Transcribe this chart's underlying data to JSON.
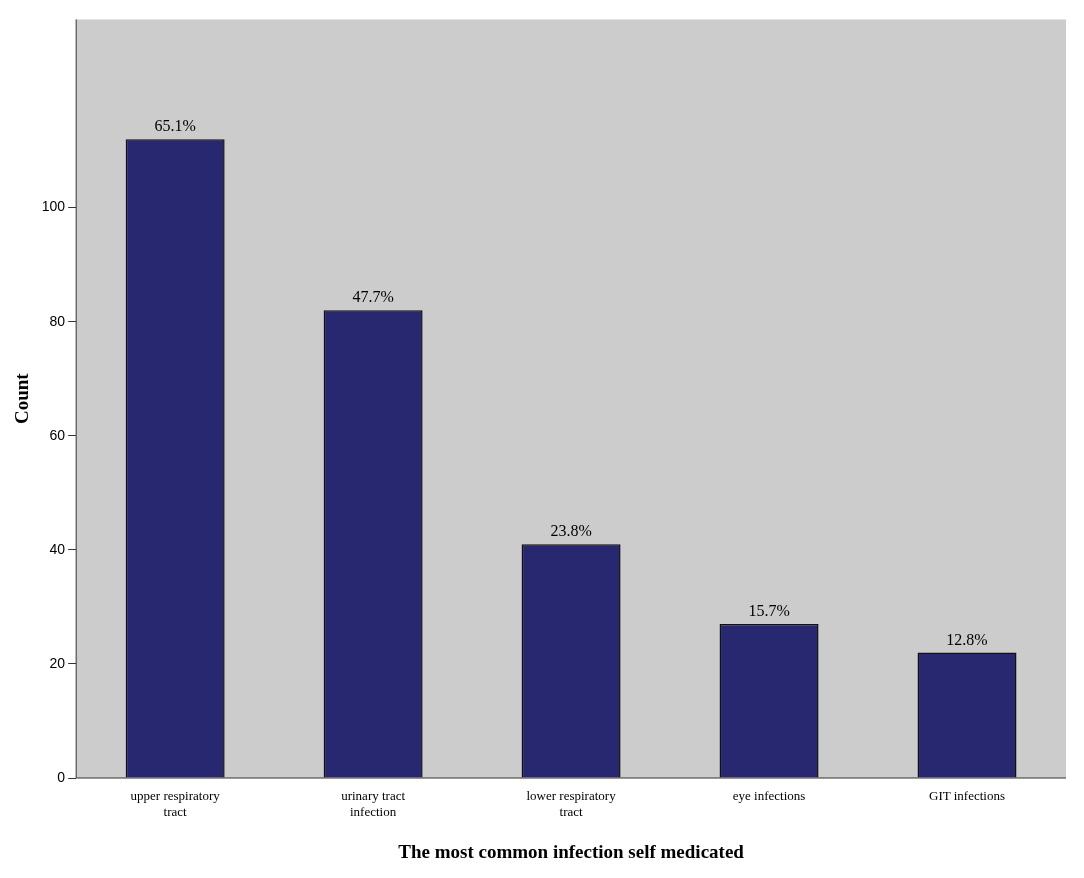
{
  "chart_data": {
    "type": "bar",
    "xlabel": "The most common infection self medicated",
    "ylabel": "Count",
    "categories": [
      "upper respiratory tract",
      "urinary tract infection",
      "lower respiratory tract",
      "eye infections",
      "GIT infections"
    ],
    "values": [
      112,
      82,
      41,
      27,
      22
    ],
    "annotations": [
      {
        "text": "65.1%",
        "x": "upper respiratory tract",
        "y": 112
      },
      {
        "text": "47.7%",
        "x": "urinary tract infection",
        "y": 82
      },
      {
        "text": "23.8%",
        "x": "lower respiratory tract",
        "y": 41
      },
      {
        "text": "15.7%",
        "x": "eye infections",
        "y": 27
      },
      {
        "text": "12.8%",
        "x": "GIT infections",
        "y": 22
      }
    ],
    "color": "#282870",
    "ylim": [
      0,
      133
    ],
    "yticks": [
      0,
      20,
      40,
      60,
      80,
      100
    ],
    "grid": false,
    "legend": false
  }
}
